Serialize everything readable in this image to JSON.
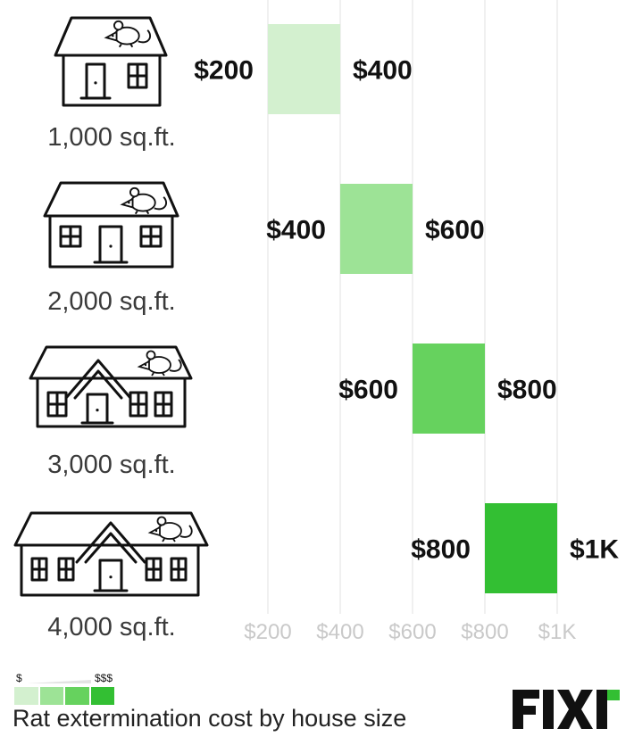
{
  "chart_data": {
    "type": "bar",
    "subtype": "floating-range",
    "orientation": "horizontal-value-axis",
    "categories": [
      "1,000 sq.ft.",
      "2,000 sq.ft.",
      "3,000 sq.ft.",
      "4,000 sq.ft."
    ],
    "ranges": [
      {
        "low": 200,
        "high": 400,
        "low_label": "$200",
        "high_label": "$400",
        "color": "#d3f0cf"
      },
      {
        "low": 400,
        "high": 600,
        "low_label": "$400",
        "high_label": "$600",
        "color": "#9de396"
      },
      {
        "low": 600,
        "high": 800,
        "low_label": "$600",
        "high_label": "$800",
        "color": "#66d25e"
      },
      {
        "low": 800,
        "high": 1000,
        "low_label": "$800",
        "high_label": "$1K",
        "color": "#33bf33"
      }
    ],
    "x_ticks": [
      {
        "value": 200,
        "label": "$200"
      },
      {
        "value": 400,
        "label": "$400"
      },
      {
        "value": 600,
        "label": "$600"
      },
      {
        "value": 800,
        "label": "$800"
      },
      {
        "value": 1000,
        "label": "$1K"
      }
    ],
    "xlim": [
      200,
      1000
    ],
    "grid": true,
    "title": "",
    "xlabel": "",
    "ylabel": ""
  },
  "legend": {
    "low_symbol": "$",
    "high_symbol": "$$$",
    "colors": [
      "#d3f0cf",
      "#9de396",
      "#66d25e",
      "#33bf33"
    ]
  },
  "caption": "Rat extermination cost by house size",
  "brand": {
    "text": "FIXR",
    "color": "#111111",
    "accent": "#33bf33"
  },
  "icons": [
    "house-small-icon",
    "house-medium-icon",
    "house-gable-icon",
    "house-large-icon",
    "rat-icon"
  ]
}
